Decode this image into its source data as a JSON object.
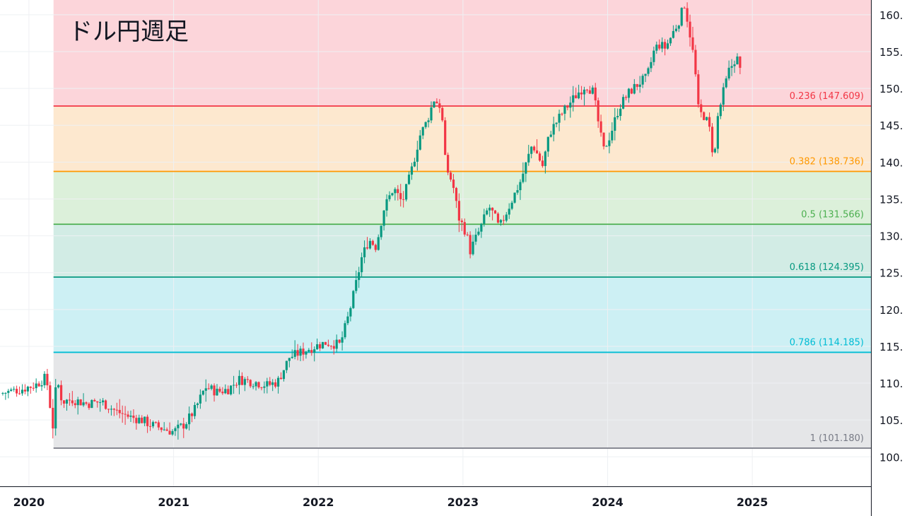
{
  "chart_data": {
    "type": "candlestick",
    "title": "ドル円週足",
    "ylim": [
      96,
      162
    ],
    "y_ticks": [
      "100.",
      "105.",
      "110.",
      "115.",
      "120.",
      "125.",
      "130.",
      "135.",
      "140.",
      "145.",
      "150.",
      "155.",
      "160."
    ],
    "y_tick_values": [
      100,
      105,
      110,
      115,
      120,
      125,
      130,
      135,
      140,
      145,
      150,
      155,
      160
    ],
    "x_ticks": [
      "2020",
      "2021",
      "2022",
      "2023",
      "2024",
      "2025"
    ],
    "x_tick_values": [
      2020.0,
      2021.0,
      2022.0,
      2023.0,
      2024.0,
      2025.0
    ],
    "xlim": [
      2019.8,
      2025.82
    ],
    "fib_start_x": 2020.17,
    "fib_levels": [
      {
        "ratio": 0.236,
        "price": 147.609,
        "label": "0.236 (147.609)",
        "line_color": "#f23645",
        "text_color": "#f23645",
        "band_color": "#fcd5da"
      },
      {
        "ratio": 0.382,
        "price": 138.736,
        "label": "0.382 (138.736)",
        "line_color": "#ff9800",
        "text_color": "#ff9800",
        "band_color": "#fde8cf"
      },
      {
        "ratio": 0.5,
        "price": 131.566,
        "label": "0.5 (131.566)",
        "line_color": "#4caf50",
        "text_color": "#4caf50",
        "band_color": "#dcf0da"
      },
      {
        "ratio": 0.618,
        "price": 124.395,
        "label": "0.618 (124.395)",
        "line_color": "#089981",
        "text_color": "#089981",
        "band_color": "#d2ece5"
      },
      {
        "ratio": 0.786,
        "price": 114.185,
        "label": "0.786 (114.185)",
        "line_color": "#00bcd4",
        "text_color": "#00bcd4",
        "band_color": "#cdf0f4"
      },
      {
        "ratio": 1,
        "price": 101.18,
        "label": "1 (101.180)",
        "line_color": "#787b86",
        "text_color": "#787b86",
        "band_color": "#e5e6e8"
      }
    ],
    "top_band_color": "#fcd5da",
    "colors": {
      "up": "#089981",
      "down": "#f23645",
      "grid": "#eef0f3",
      "axis": "#131722"
    },
    "price_path": [
      [
        2019.8,
        108.6
      ],
      [
        2019.95,
        109.2
      ],
      [
        2020.05,
        109.8
      ],
      [
        2020.12,
        110.8
      ],
      [
        2020.17,
        103.5
      ],
      [
        2020.19,
        110.8
      ],
      [
        2020.23,
        107.5
      ],
      [
        2020.3,
        107.8
      ],
      [
        2020.4,
        107.2
      ],
      [
        2020.5,
        107.5
      ],
      [
        2020.6,
        106.2
      ],
      [
        2020.7,
        105.4
      ],
      [
        2020.78,
        105.0
      ],
      [
        2020.85,
        104.3
      ],
      [
        2020.93,
        103.8
      ],
      [
        2021.0,
        103.4
      ],
      [
        2021.08,
        104.5
      ],
      [
        2021.15,
        106.5
      ],
      [
        2021.22,
        109.5
      ],
      [
        2021.3,
        108.8
      ],
      [
        2021.38,
        109.2
      ],
      [
        2021.45,
        110.5
      ],
      [
        2021.55,
        110.2
      ],
      [
        2021.65,
        109.7
      ],
      [
        2021.72,
        110.2
      ],
      [
        2021.8,
        113.5
      ],
      [
        2021.88,
        114.2
      ],
      [
        2021.95,
        114.8
      ],
      [
        2022.05,
        115.5
      ],
      [
        2022.15,
        115.2
      ],
      [
        2022.2,
        118.5
      ],
      [
        2022.25,
        122.5
      ],
      [
        2022.3,
        127.0
      ],
      [
        2022.35,
        129.5
      ],
      [
        2022.4,
        128.5
      ],
      [
        2022.45,
        133.5
      ],
      [
        2022.52,
        136.5
      ],
      [
        2022.58,
        134.5
      ],
      [
        2022.64,
        138.5
      ],
      [
        2022.7,
        143.5
      ],
      [
        2022.75,
        145.5
      ],
      [
        2022.8,
        148.5
      ],
      [
        2022.85,
        147.5
      ],
      [
        2022.88,
        139.5
      ],
      [
        2022.93,
        137.0
      ],
      [
        2022.97,
        132.5
      ],
      [
        2023.02,
        130.5
      ],
      [
        2023.05,
        128.0
      ],
      [
        2023.12,
        131.0
      ],
      [
        2023.18,
        134.0
      ],
      [
        2023.22,
        132.5
      ],
      [
        2023.25,
        131.0
      ],
      [
        2023.33,
        134.5
      ],
      [
        2023.4,
        137.5
      ],
      [
        2023.48,
        142.5
      ],
      [
        2023.55,
        139.5
      ],
      [
        2023.6,
        144.0
      ],
      [
        2023.68,
        146.5
      ],
      [
        2023.75,
        148.3
      ],
      [
        2023.8,
        149.5
      ],
      [
        2023.85,
        150.5
      ],
      [
        2023.9,
        149.5
      ],
      [
        2023.93,
        146.0
      ],
      [
        2023.97,
        141.5
      ],
      [
        2024.02,
        143.8
      ],
      [
        2024.08,
        147.5
      ],
      [
        2024.15,
        149.5
      ],
      [
        2024.22,
        150.8
      ],
      [
        2024.27,
        151.4
      ],
      [
        2024.32,
        155.0
      ],
      [
        2024.35,
        156.0
      ],
      [
        2024.4,
        155.5
      ],
      [
        2024.45,
        157.5
      ],
      [
        2024.5,
        159.5
      ],
      [
        2024.53,
        161.5
      ],
      [
        2024.56,
        158.5
      ],
      [
        2024.6,
        153.5
      ],
      [
        2024.63,
        146.5
      ],
      [
        2024.66,
        146.5
      ],
      [
        2024.7,
        145.0
      ],
      [
        2024.72,
        142.0
      ],
      [
        2024.74,
        141.0
      ],
      [
        2024.76,
        146.0
      ],
      [
        2024.8,
        149.5
      ],
      [
        2024.84,
        152.5
      ],
      [
        2024.87,
        153.5
      ],
      [
        2024.89,
        154.5
      ],
      [
        2024.92,
        152.0
      ]
    ]
  }
}
